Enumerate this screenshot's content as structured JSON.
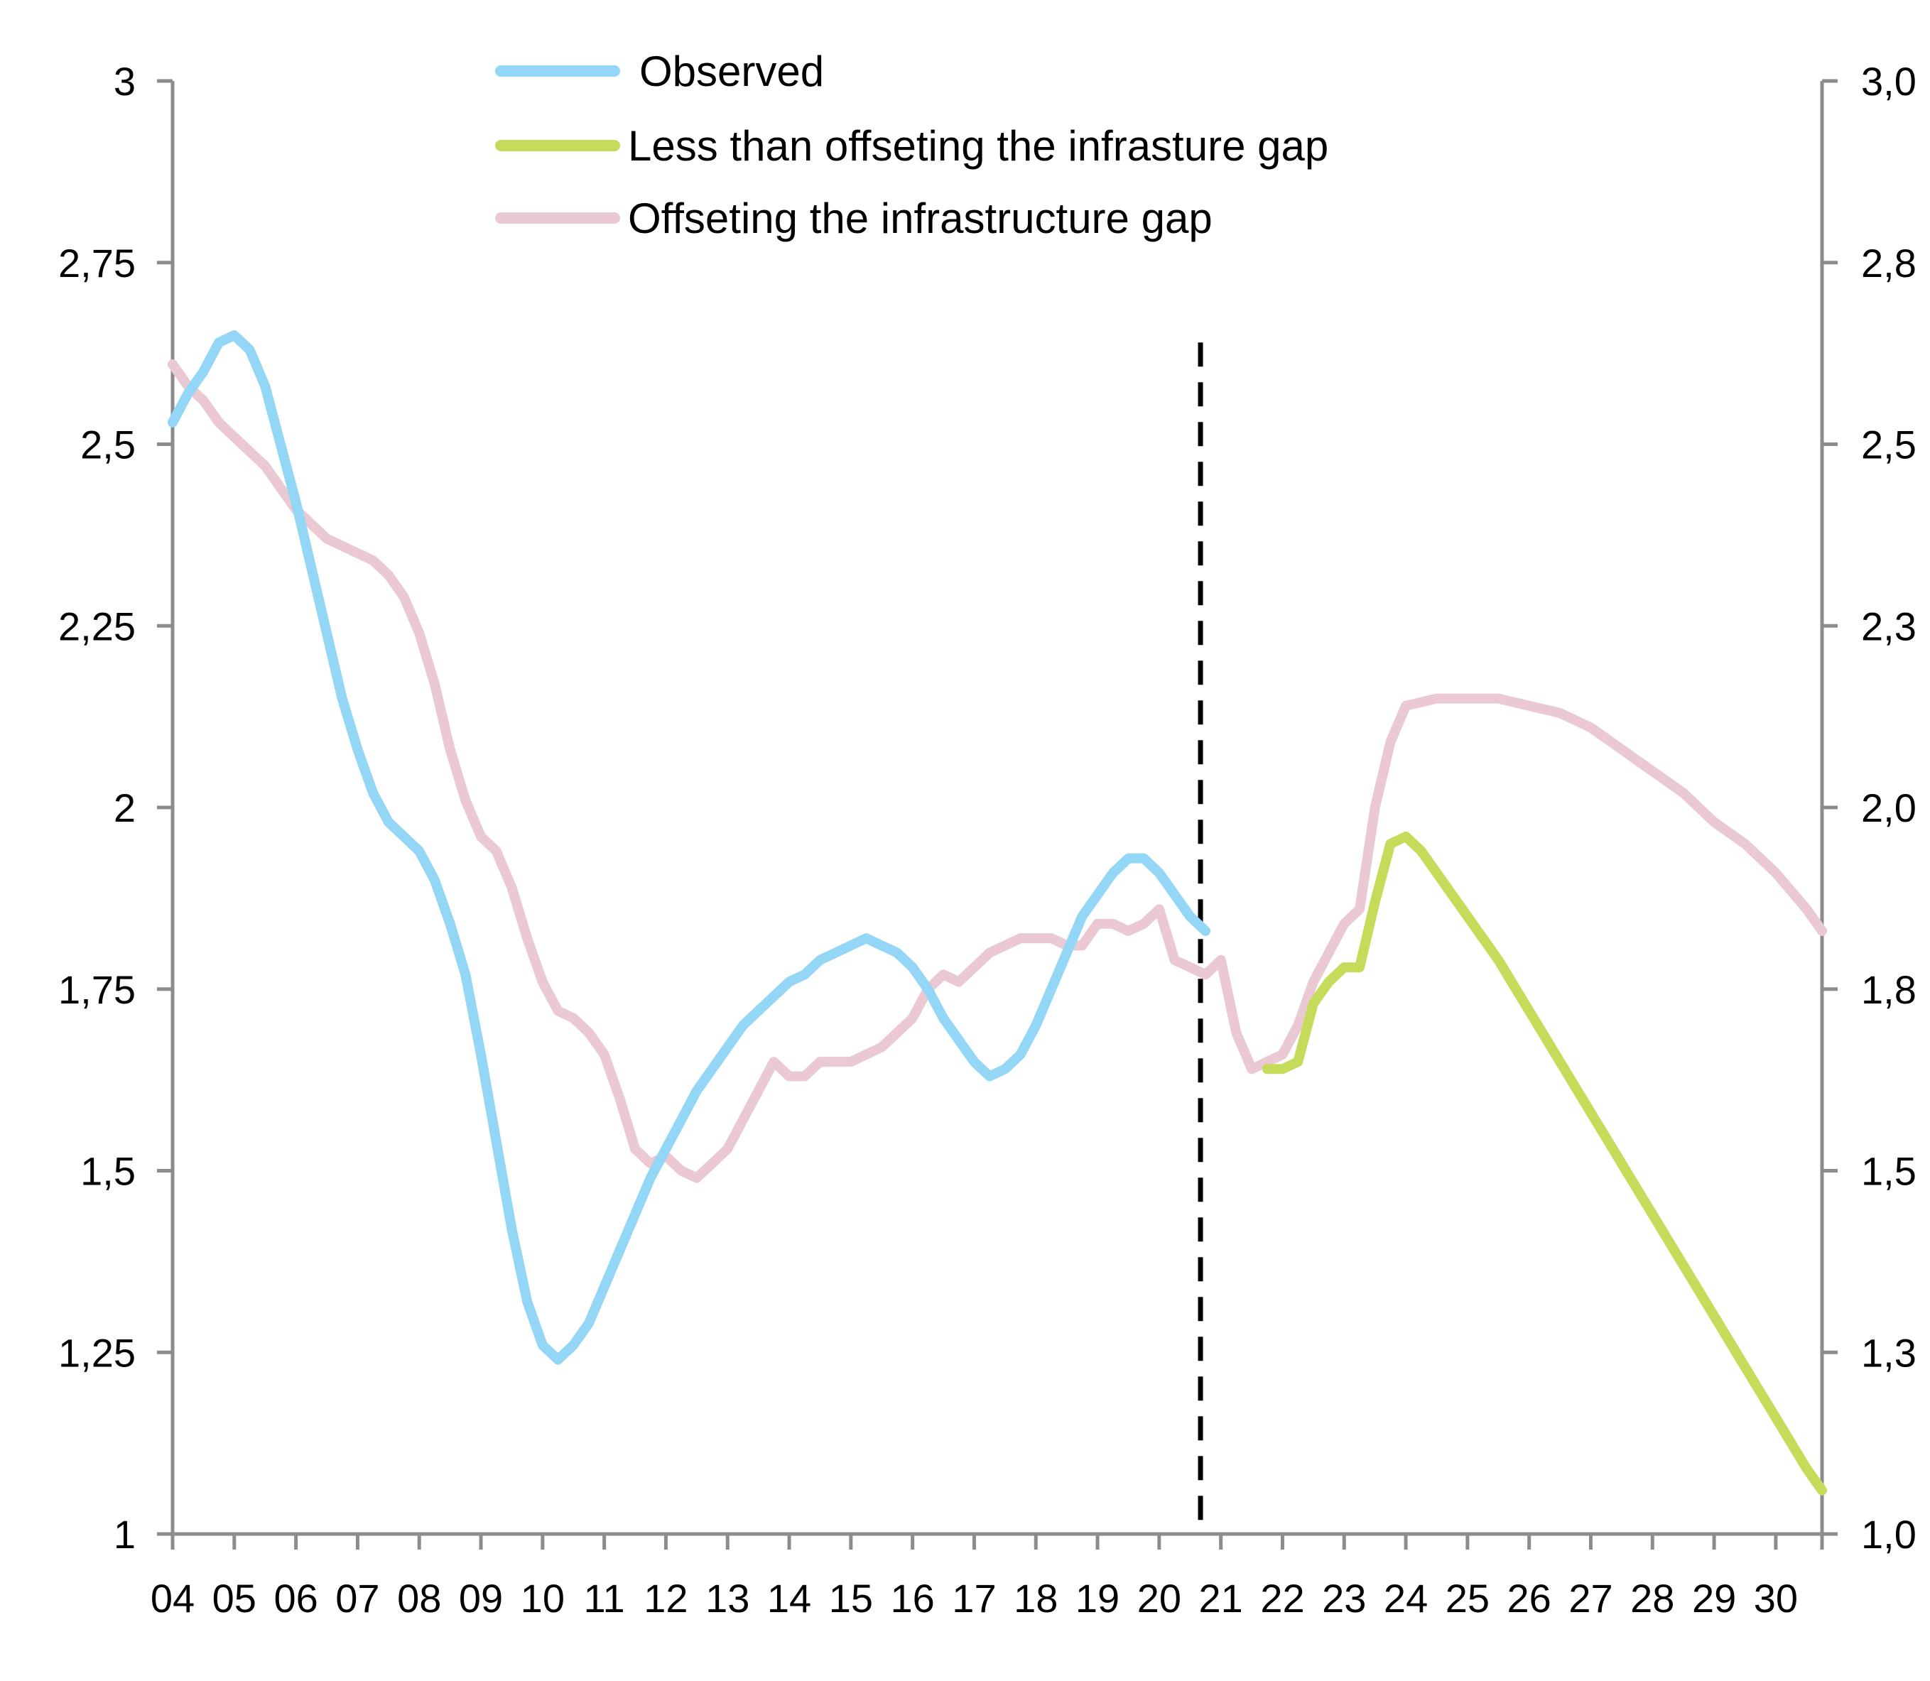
{
  "chart_data": {
    "type": "line",
    "title": "",
    "xlabel": "",
    "ylabel": "",
    "x_domain": [
      2004,
      2030.75
    ],
    "x_ticks": [
      {
        "value": 2004,
        "label": "04"
      },
      {
        "value": 2005,
        "label": "05"
      },
      {
        "value": 2006,
        "label": "06"
      },
      {
        "value": 2007,
        "label": "07"
      },
      {
        "value": 2008,
        "label": "08"
      },
      {
        "value": 2009,
        "label": "09"
      },
      {
        "value": 2010,
        "label": "10"
      },
      {
        "value": 2011,
        "label": "11"
      },
      {
        "value": 2012,
        "label": "12"
      },
      {
        "value": 2013,
        "label": "13"
      },
      {
        "value": 2014,
        "label": "14"
      },
      {
        "value": 2015,
        "label": "15"
      },
      {
        "value": 2016,
        "label": "16"
      },
      {
        "value": 2017,
        "label": "17"
      },
      {
        "value": 2018,
        "label": "18"
      },
      {
        "value": 2019,
        "label": "19"
      },
      {
        "value": 2020,
        "label": "20"
      },
      {
        "value": 2021,
        "label": "21"
      },
      {
        "value": 2022,
        "label": "22"
      },
      {
        "value": 2023,
        "label": "23"
      },
      {
        "value": 2024,
        "label": "24"
      },
      {
        "value": 2025,
        "label": "25"
      },
      {
        "value": 2026,
        "label": "26"
      },
      {
        "value": 2027,
        "label": "27"
      },
      {
        "value": 2028,
        "label": "28"
      },
      {
        "value": 2029,
        "label": "29"
      },
      {
        "value": 2030,
        "label": "30"
      }
    ],
    "ylim": [
      1,
      3
    ],
    "y_ticks_left": [
      {
        "value": 1,
        "label": "1"
      },
      {
        "value": 1.25,
        "label": "1,25"
      },
      {
        "value": 1.5,
        "label": "1,5"
      },
      {
        "value": 1.75,
        "label": "1,75"
      },
      {
        "value": 2,
        "label": "2"
      },
      {
        "value": 2.25,
        "label": "2,25"
      },
      {
        "value": 2.5,
        "label": "2,5"
      },
      {
        "value": 2.75,
        "label": "2,75"
      },
      {
        "value": 3,
        "label": "3"
      }
    ],
    "y_ticks_right": [
      {
        "value": 1,
        "label": "1,0"
      },
      {
        "value": 1.25,
        "label": "1,3"
      },
      {
        "value": 1.5,
        "label": "1,5"
      },
      {
        "value": 1.75,
        "label": "1,8"
      },
      {
        "value": 2,
        "label": "2,0"
      },
      {
        "value": 2.25,
        "label": "2,3"
      },
      {
        "value": 2.5,
        "label": "2,5"
      },
      {
        "value": 2.75,
        "label": "2,8"
      },
      {
        "value": 3,
        "label": "3,0"
      }
    ],
    "grid": false,
    "legend_position": "top-center",
    "vertical_marker": {
      "x": 2020.67,
      "ymax": 2.64,
      "style": "dashed",
      "color": "#000000"
    },
    "series": [
      {
        "name": "Observed",
        "color": "#94d6f5",
        "points": [
          [
            2004.0,
            2.53
          ],
          [
            2004.25,
            2.57
          ],
          [
            2004.5,
            2.6
          ],
          [
            2004.75,
            2.64
          ],
          [
            2005.0,
            2.65
          ],
          [
            2005.25,
            2.63
          ],
          [
            2005.5,
            2.58
          ],
          [
            2005.75,
            2.5
          ],
          [
            2006.0,
            2.42
          ],
          [
            2006.25,
            2.33
          ],
          [
            2006.5,
            2.24
          ],
          [
            2006.75,
            2.15
          ],
          [
            2007.0,
            2.08
          ],
          [
            2007.25,
            2.02
          ],
          [
            2007.5,
            1.98
          ],
          [
            2007.75,
            1.96
          ],
          [
            2008.0,
            1.94
          ],
          [
            2008.25,
            1.9
          ],
          [
            2008.5,
            1.84
          ],
          [
            2008.75,
            1.77
          ],
          [
            2009.0,
            1.66
          ],
          [
            2009.25,
            1.54
          ],
          [
            2009.5,
            1.42
          ],
          [
            2009.75,
            1.32
          ],
          [
            2010.0,
            1.26
          ],
          [
            2010.25,
            1.24
          ],
          [
            2010.5,
            1.26
          ],
          [
            2010.75,
            1.29
          ],
          [
            2011.0,
            1.34
          ],
          [
            2011.25,
            1.39
          ],
          [
            2011.5,
            1.44
          ],
          [
            2011.75,
            1.49
          ],
          [
            2012.0,
            1.53
          ],
          [
            2012.25,
            1.57
          ],
          [
            2012.5,
            1.61
          ],
          [
            2012.75,
            1.64
          ],
          [
            2013.0,
            1.67
          ],
          [
            2013.25,
            1.7
          ],
          [
            2013.5,
            1.72
          ],
          [
            2013.75,
            1.74
          ],
          [
            2014.0,
            1.76
          ],
          [
            2014.25,
            1.77
          ],
          [
            2014.5,
            1.79
          ],
          [
            2014.75,
            1.8
          ],
          [
            2015.0,
            1.81
          ],
          [
            2015.25,
            1.82
          ],
          [
            2015.5,
            1.81
          ],
          [
            2015.75,
            1.8
          ],
          [
            2016.0,
            1.78
          ],
          [
            2016.25,
            1.75
          ],
          [
            2016.5,
            1.71
          ],
          [
            2016.75,
            1.68
          ],
          [
            2017.0,
            1.65
          ],
          [
            2017.25,
            1.63
          ],
          [
            2017.5,
            1.64
          ],
          [
            2017.75,
            1.66
          ],
          [
            2018.0,
            1.7
          ],
          [
            2018.25,
            1.75
          ],
          [
            2018.5,
            1.8
          ],
          [
            2018.75,
            1.85
          ],
          [
            2019.0,
            1.88
          ],
          [
            2019.25,
            1.91
          ],
          [
            2019.5,
            1.93
          ],
          [
            2019.75,
            1.93
          ],
          [
            2020.0,
            1.91
          ],
          [
            2020.25,
            1.88
          ],
          [
            2020.5,
            1.85
          ],
          [
            2020.75,
            1.83
          ]
        ]
      },
      {
        "name": "Less than offseting the infrasture gap",
        "color": "#c5dc5a",
        "points": [
          [
            2021.75,
            1.64
          ],
          [
            2022.0,
            1.64
          ],
          [
            2022.25,
            1.65
          ],
          [
            2022.5,
            1.73
          ],
          [
            2022.75,
            1.76
          ],
          [
            2023.0,
            1.78
          ],
          [
            2023.25,
            1.78
          ],
          [
            2023.5,
            1.87
          ],
          [
            2023.75,
            1.95
          ],
          [
            2024.0,
            1.96
          ],
          [
            2024.25,
            1.94
          ],
          [
            2024.5,
            1.91
          ],
          [
            2024.75,
            1.88
          ],
          [
            2025.0,
            1.85
          ],
          [
            2025.5,
            1.79
          ],
          [
            2026.0,
            1.72
          ],
          [
            2026.5,
            1.65
          ],
          [
            2027.0,
            1.58
          ],
          [
            2027.5,
            1.51
          ],
          [
            2028.0,
            1.44
          ],
          [
            2028.5,
            1.37
          ],
          [
            2029.0,
            1.3
          ],
          [
            2029.5,
            1.23
          ],
          [
            2030.0,
            1.16
          ],
          [
            2030.5,
            1.09
          ],
          [
            2030.75,
            1.06
          ]
        ]
      },
      {
        "name": "Offseting the infrastructure gap",
        "color": "#ebc9d2",
        "points": [
          [
            2004.0,
            2.61
          ],
          [
            2004.25,
            2.58
          ],
          [
            2004.5,
            2.56
          ],
          [
            2004.75,
            2.53
          ],
          [
            2005.0,
            2.51
          ],
          [
            2005.25,
            2.49
          ],
          [
            2005.5,
            2.47
          ],
          [
            2005.75,
            2.44
          ],
          [
            2006.0,
            2.41
          ],
          [
            2006.25,
            2.39
          ],
          [
            2006.5,
            2.37
          ],
          [
            2006.75,
            2.36
          ],
          [
            2007.0,
            2.35
          ],
          [
            2007.25,
            2.34
          ],
          [
            2007.5,
            2.32
          ],
          [
            2007.75,
            2.29
          ],
          [
            2008.0,
            2.24
          ],
          [
            2008.25,
            2.17
          ],
          [
            2008.5,
            2.08
          ],
          [
            2008.75,
            2.01
          ],
          [
            2009.0,
            1.96
          ],
          [
            2009.25,
            1.94
          ],
          [
            2009.5,
            1.89
          ],
          [
            2009.75,
            1.82
          ],
          [
            2010.0,
            1.76
          ],
          [
            2010.25,
            1.72
          ],
          [
            2010.5,
            1.71
          ],
          [
            2010.75,
            1.69
          ],
          [
            2011.0,
            1.66
          ],
          [
            2011.25,
            1.6
          ],
          [
            2011.5,
            1.53
          ],
          [
            2011.75,
            1.51
          ],
          [
            2012.0,
            1.52
          ],
          [
            2012.25,
            1.5
          ],
          [
            2012.5,
            1.49
          ],
          [
            2012.75,
            1.51
          ],
          [
            2013.0,
            1.53
          ],
          [
            2013.25,
            1.57
          ],
          [
            2013.5,
            1.61
          ],
          [
            2013.75,
            1.65
          ],
          [
            2014.0,
            1.63
          ],
          [
            2014.25,
            1.63
          ],
          [
            2014.5,
            1.65
          ],
          [
            2014.75,
            1.65
          ],
          [
            2015.0,
            1.65
          ],
          [
            2015.25,
            1.66
          ],
          [
            2015.5,
            1.67
          ],
          [
            2015.75,
            1.69
          ],
          [
            2016.0,
            1.71
          ],
          [
            2016.25,
            1.75
          ],
          [
            2016.5,
            1.77
          ],
          [
            2016.75,
            1.76
          ],
          [
            2017.0,
            1.78
          ],
          [
            2017.25,
            1.8
          ],
          [
            2017.5,
            1.81
          ],
          [
            2017.75,
            1.82
          ],
          [
            2018.0,
            1.82
          ],
          [
            2018.25,
            1.82
          ],
          [
            2018.5,
            1.81
          ],
          [
            2018.75,
            1.81
          ],
          [
            2019.0,
            1.84
          ],
          [
            2019.25,
            1.84
          ],
          [
            2019.5,
            1.83
          ],
          [
            2019.75,
            1.84
          ],
          [
            2020.0,
            1.86
          ],
          [
            2020.25,
            1.79
          ],
          [
            2020.5,
            1.78
          ],
          [
            2020.75,
            1.77
          ],
          [
            2021.0,
            1.79
          ],
          [
            2021.25,
            1.69
          ],
          [
            2021.5,
            1.64
          ],
          [
            2021.75,
            1.65
          ],
          [
            2022.0,
            1.66
          ],
          [
            2022.25,
            1.7
          ],
          [
            2022.5,
            1.76
          ],
          [
            2022.75,
            1.8
          ],
          [
            2023.0,
            1.84
          ],
          [
            2023.25,
            1.86
          ],
          [
            2023.5,
            2.0
          ],
          [
            2023.75,
            2.09
          ],
          [
            2024.0,
            2.14
          ],
          [
            2024.5,
            2.15
          ],
          [
            2025.0,
            2.15
          ],
          [
            2025.5,
            2.15
          ],
          [
            2026.0,
            2.14
          ],
          [
            2026.5,
            2.13
          ],
          [
            2027.0,
            2.11
          ],
          [
            2027.5,
            2.08
          ],
          [
            2028.0,
            2.05
          ],
          [
            2028.5,
            2.02
          ],
          [
            2029.0,
            1.98
          ],
          [
            2029.5,
            1.95
          ],
          [
            2030.0,
            1.91
          ],
          [
            2030.5,
            1.86
          ],
          [
            2030.75,
            1.83
          ]
        ]
      }
    ]
  }
}
